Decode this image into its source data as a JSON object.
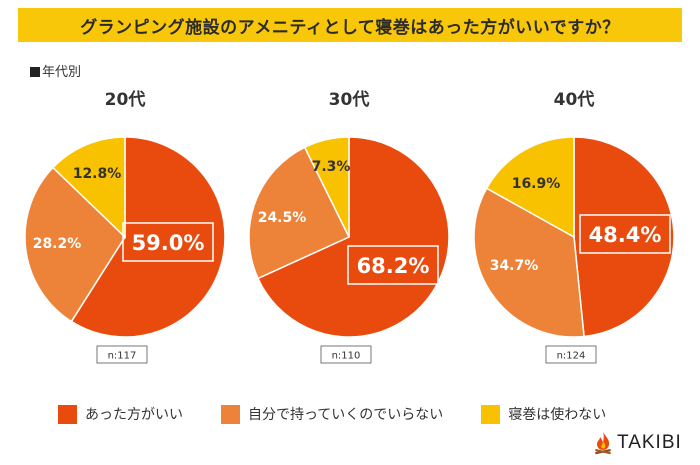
{
  "header": {
    "title": "グランピング施設のアメニティとして寝巻はあった方がいいですか？"
  },
  "subtitle": "■年代別",
  "chart_data": [
    {
      "type": "pie",
      "title": "20代",
      "n_label": "n:117",
      "slices": [
        {
          "label": "あった方がいい",
          "value": 59.0,
          "display": "59.0%",
          "color": "#E94B0E"
        },
        {
          "label": "自分で持っていくのでいらない",
          "value": 28.2,
          "display": "28.2%",
          "color": "#EC8338"
        },
        {
          "label": "寝巻は使わない",
          "value": 12.8,
          "display": "12.8%",
          "color": "#F9C200"
        }
      ]
    },
    {
      "type": "pie",
      "title": "30代",
      "n_label": "n:110",
      "slices": [
        {
          "label": "あった方がいい",
          "value": 68.2,
          "display": "68.2%",
          "color": "#E94B0E"
        },
        {
          "label": "自分で持っていくのでいらない",
          "value": 24.5,
          "display": "24.5%",
          "color": "#EC8338"
        },
        {
          "label": "寝巻は使わない",
          "value": 7.3,
          "display": "7.3%",
          "color": "#F9C200"
        }
      ]
    },
    {
      "type": "pie",
      "title": "40代",
      "n_label": "n:124",
      "slices": [
        {
          "label": "あった方がいい",
          "value": 48.4,
          "display": "48.4%",
          "color": "#E94B0E"
        },
        {
          "label": "自分で持っていくのでいらない",
          "value": 34.7,
          "display": "34.7%",
          "color": "#EC8338"
        },
        {
          "label": "寝巻は使わない",
          "value": 16.9,
          "display": "16.9%",
          "color": "#F9C200"
        }
      ]
    }
  ],
  "legend": [
    {
      "label": "あった方がいい",
      "color": "#E94B0E"
    },
    {
      "label": "自分で持っていくのでいらない",
      "color": "#EC8338"
    },
    {
      "label": "寝巻は使わない",
      "color": "#F9C200"
    }
  ],
  "brand": {
    "name": "TAKIBI",
    "icon": "campfire-icon"
  }
}
